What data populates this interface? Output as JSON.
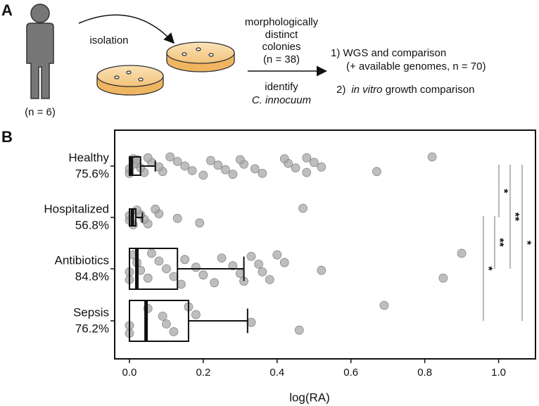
{
  "diagram": {
    "panel_a": "A",
    "person_n": "(n = 6)",
    "arrow_label": "isolation",
    "colonies": [
      "morphologically",
      "distinct",
      "colonies",
      "(n = 38)"
    ],
    "identify": "identify",
    "species": "C. innocuum",
    "step1": "1)  WGS and comparison",
    "step1_note": "(+ available genomes, n = 70)",
    "step2_num": "2)",
    "step2_italic": "in vitro",
    "step2_rest": " growth comparison"
  },
  "chart_data": {
    "type": "box",
    "panel": "B",
    "categories": [
      "Healthy",
      "Hospitalized",
      "Antibiotics",
      "Sepsis"
    ],
    "category_percent_labels": [
      "75.6%",
      "56.8%",
      "84.8%",
      "76.2%"
    ],
    "x_label": "log(RA)",
    "xlim": [
      -0.04,
      1.1
    ],
    "xticks": [
      {
        "value": 0,
        "label": "0.0"
      },
      {
        "value": 0.2,
        "label": "0.2"
      },
      {
        "value": 0.4,
        "label": "0.4"
      },
      {
        "value": 0.6,
        "label": "0.6"
      },
      {
        "value": 0.8,
        "label": "0.8"
      },
      {
        "value": 1.0,
        "label": "1.0"
      }
    ],
    "boxes": [
      {
        "whislo": 0,
        "q1": 0,
        "med": 0.005,
        "q3": 0.03,
        "whishi": 0.07
      },
      {
        "whislo": 0,
        "q1": 0,
        "med": 0.008,
        "q3": 0.017,
        "whishi": 0.035
      },
      {
        "whislo": 0,
        "q1": 0,
        "med": 0.02,
        "q3": 0.13,
        "whishi": 0.31
      },
      {
        "whislo": 0,
        "q1": 0,
        "med": 0.045,
        "q3": 0.16,
        "whishi": 0.32
      }
    ],
    "points": [
      [
        0.82,
        0.67,
        0.52,
        0.5,
        0.48,
        0.48,
        0.45,
        0.43,
        0.42,
        0.36,
        0.34,
        0.31,
        0.3,
        0.28,
        0.26,
        0.24,
        0.22,
        0.2,
        0.17,
        0.15,
        0.13,
        0.11,
        0.09,
        0.08,
        0.06,
        0.05,
        0.04,
        0.03,
        0.02,
        0.01,
        0.0,
        0.0,
        0.01,
        0.02
      ],
      [
        0.47,
        0.19,
        0.13,
        0.08,
        0.07,
        0.05,
        0.04,
        0.03,
        0.02,
        0.01,
        0.0,
        0.0
      ],
      [
        0.9,
        0.85,
        0.52,
        0.42,
        0.4,
        0.38,
        0.36,
        0.35,
        0.33,
        0.31,
        0.3,
        0.28,
        0.25,
        0.23,
        0.2,
        0.18,
        0.15,
        0.14,
        0.12,
        0.1,
        0.08,
        0.06,
        0.05,
        0.03,
        0.02,
        0.01,
        0.0,
        0.0
      ],
      [
        0.69,
        0.46,
        0.33,
        0.18,
        0.16,
        0.12,
        0.1,
        0.09,
        0.05,
        0.0,
        0.0
      ]
    ],
    "point_color": "#a8a8a8",
    "significance": [
      {
        "groups": [
          0,
          1
        ],
        "label": "*"
      },
      {
        "groups": [
          0,
          2
        ],
        "label": "**"
      },
      {
        "groups": [
          0,
          3
        ],
        "label": "*"
      },
      {
        "groups": [
          1,
          2
        ],
        "label": "**"
      },
      {
        "groups": [
          1,
          3
        ],
        "label": "*"
      }
    ]
  }
}
